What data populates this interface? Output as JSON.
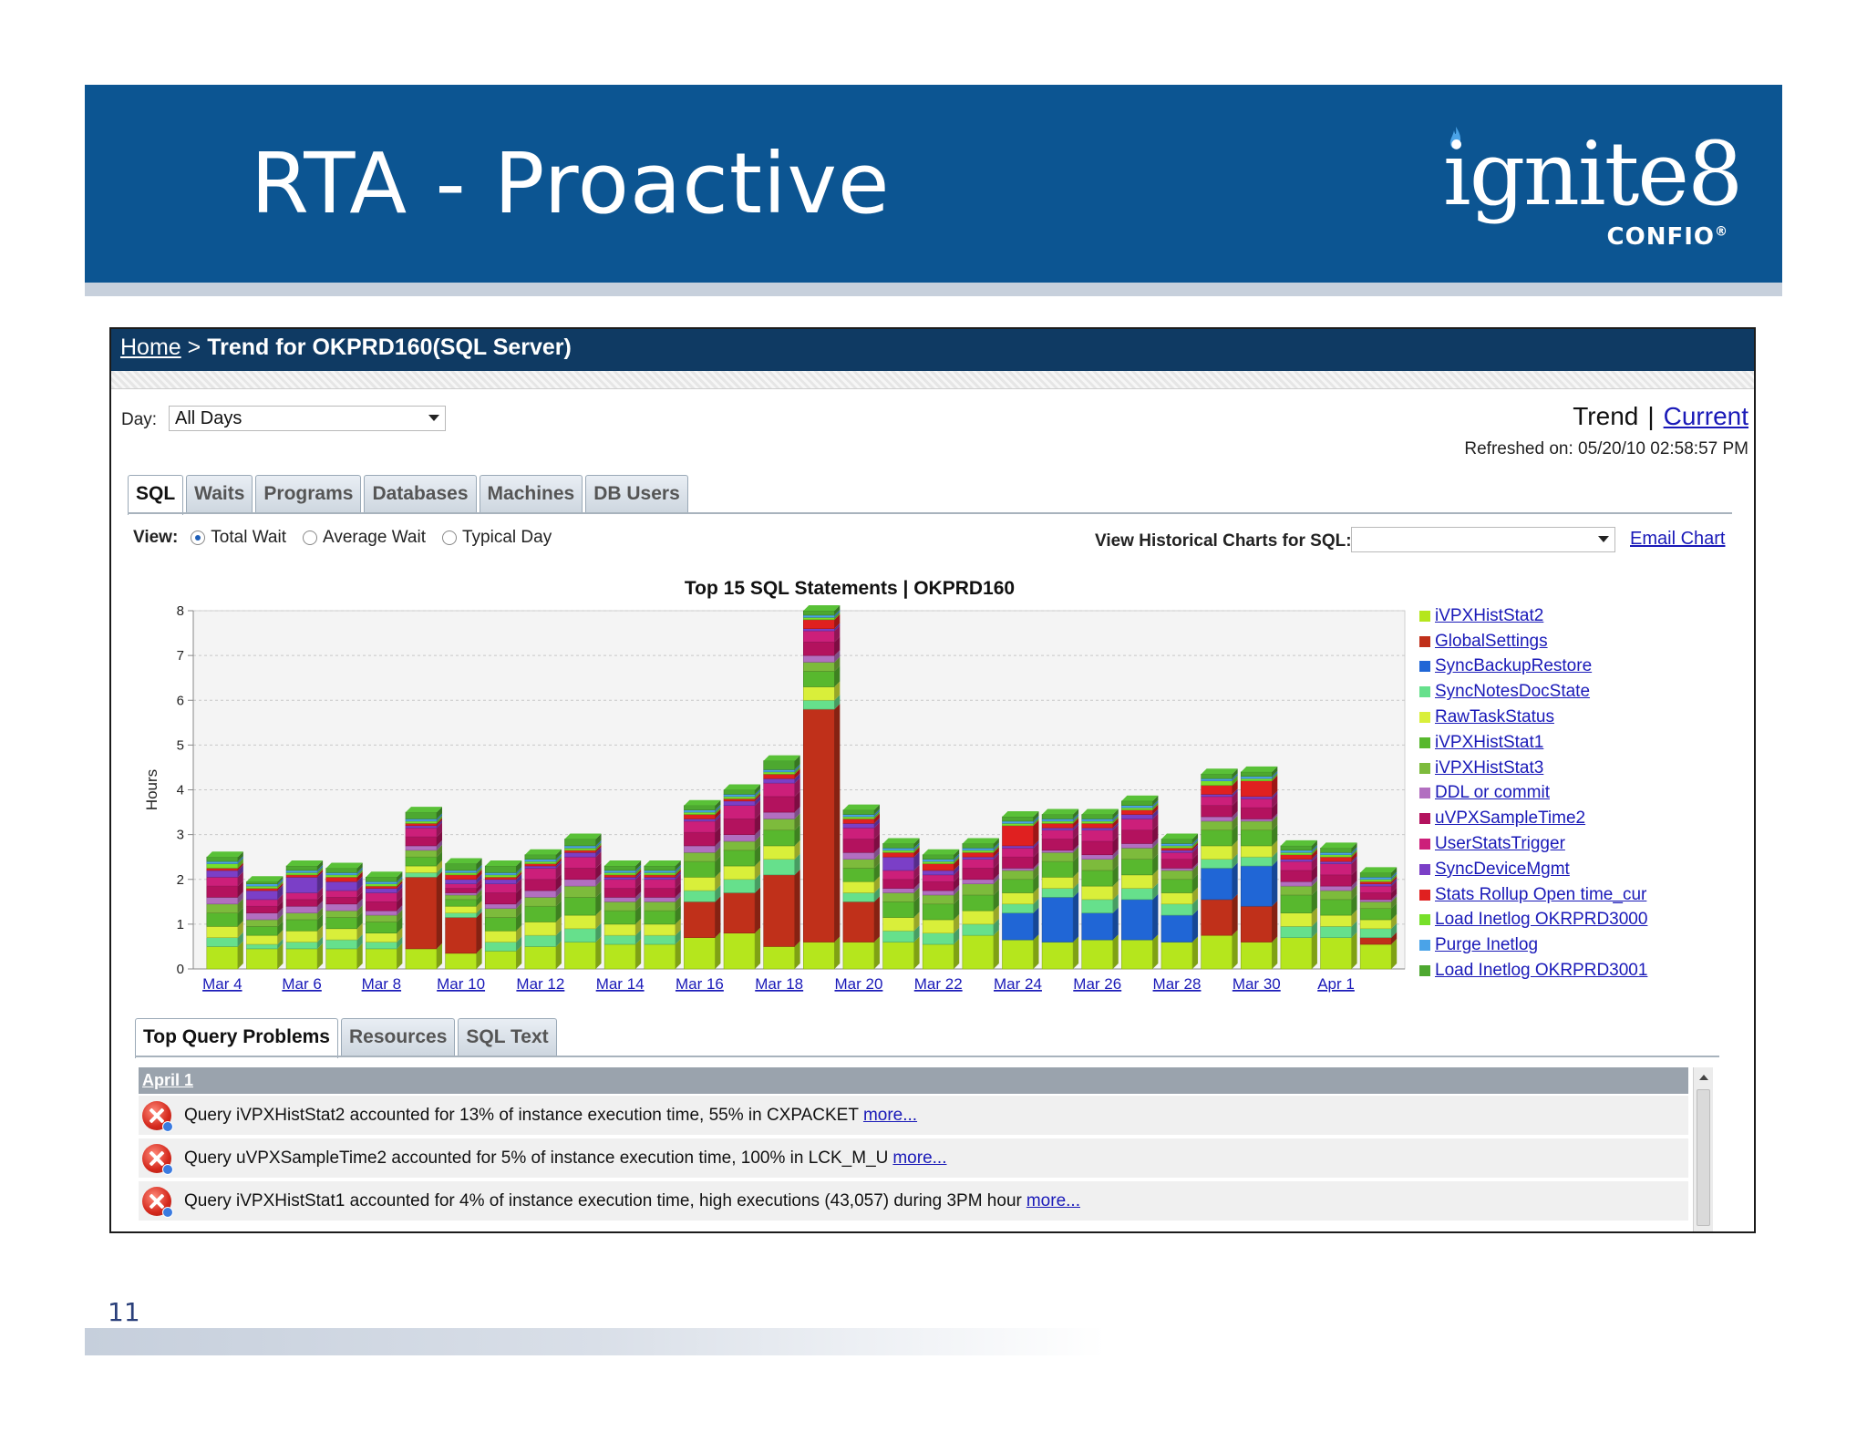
{
  "slide": {
    "title": "RTA - Proactive",
    "page_number": "11",
    "logo": {
      "word": "ignite8",
      "sub": "CONFIO",
      "trademark": "®"
    }
  },
  "app": {
    "breadcrumb_home": "Home",
    "breadcrumb_sep": ">",
    "page_title": "Trend for OKPRD160(SQL Server)",
    "day_label": "Day:",
    "day_value": "All Days",
    "trend_label": "Trend",
    "trend_sep": "|",
    "current_link": "Current",
    "refreshed": "Refreshed on: 05/20/10 02:58:57 PM",
    "tabs": [
      "SQL",
      "Waits",
      "Programs",
      "Databases",
      "Machines",
      "DB Users"
    ],
    "view_label": "View:",
    "view_options": [
      "Total Wait",
      "Average Wait",
      "Typical Day"
    ],
    "view_selected": "Total Wait",
    "historical_label": "View Historical Charts for SQL:",
    "historical_value": "",
    "email_chart": "Email Chart",
    "bottom_tabs": [
      "Top Query Problems",
      "Resources",
      "SQL Text"
    ],
    "problems_date": "April 1",
    "problems": [
      {
        "text": "Query iVPXHistStat2 accounted for 13% of instance execution time, 55% in CXPACKET",
        "more": "more..."
      },
      {
        "text": "Query uVPXSampleTime2 accounted for 5% of instance execution time, 100% in LCK_M_U",
        "more": "more..."
      },
      {
        "text": "Query iVPXHistStat1 accounted for 4% of instance execution time, high executions (43,057) during 3PM hour",
        "more": "more..."
      }
    ]
  },
  "colors": {
    "banner": "#0c5592",
    "titlebar": "#0f3a63",
    "link": "#1a1ab8"
  },
  "chart_data": {
    "type": "bar",
    "stacked": true,
    "title": "Top 15 SQL Statements | OKPRD160",
    "ylabel": "Hours",
    "xlabel": "",
    "ylim": [
      0,
      8
    ],
    "yticks": [
      0,
      1,
      2,
      3,
      4,
      5,
      6,
      7,
      8
    ],
    "grid": true,
    "legend_position": "right",
    "categories": [
      "Mar 4",
      "Mar 5",
      "Mar 6",
      "Mar 7",
      "Mar 8",
      "Mar 9",
      "Mar 10",
      "Mar 11",
      "Mar 12",
      "Mar 13",
      "Mar 14",
      "Mar 15",
      "Mar 16",
      "Mar 17",
      "Mar 18",
      "Mar 19",
      "Mar 20",
      "Mar 21",
      "Mar 22",
      "Mar 23",
      "Mar 24",
      "Mar 25",
      "Mar 26",
      "Mar 27",
      "Mar 28",
      "Mar 29",
      "Mar 30",
      "Mar 31",
      "Apr 1",
      "Apr 2"
    ],
    "x_tick_labels": [
      "Mar 4",
      "Mar 6",
      "Mar 8",
      "Mar 10",
      "Mar 12",
      "Mar 14",
      "Mar 16",
      "Mar 18",
      "Mar 20",
      "Mar 22",
      "Mar 24",
      "Mar 26",
      "Mar 28",
      "Mar 30",
      "Apr 1"
    ],
    "series": [
      {
        "name": "iVPXHistStat2",
        "color": "#b5e61d",
        "values": [
          0.5,
          0.45,
          0.45,
          0.45,
          0.45,
          0.45,
          0.35,
          0.4,
          0.5,
          0.6,
          0.55,
          0.55,
          0.7,
          0.8,
          0.5,
          0.6,
          0.6,
          0.6,
          0.55,
          0.75,
          0.65,
          0.6,
          0.65,
          0.65,
          0.6,
          0.75,
          0.6,
          0.7,
          0.7,
          0.55
        ]
      },
      {
        "name": "GlobalSettings",
        "color": "#c0301a",
        "values": [
          0,
          0,
          0,
          0,
          0,
          1.6,
          0.8,
          0,
          0,
          0,
          0,
          0,
          0.8,
          0.9,
          1.6,
          5.2,
          0.9,
          0,
          0,
          0,
          0,
          0,
          0,
          0,
          0,
          0.8,
          0.8,
          0,
          0,
          0.15
        ]
      },
      {
        "name": "SyncBackupRestore",
        "color": "#2066d6",
        "values": [
          0,
          0,
          0,
          0,
          0,
          0,
          0,
          0,
          0,
          0,
          0,
          0,
          0,
          0,
          0,
          0,
          0,
          0,
          0,
          0,
          0.6,
          1.0,
          0.6,
          0.9,
          0.6,
          0.7,
          0.9,
          0,
          0,
          0
        ]
      },
      {
        "name": "SyncNotesDocState",
        "color": "#66e08c",
        "values": [
          0.2,
          0.1,
          0.15,
          0.2,
          0.15,
          0.1,
          0.1,
          0.2,
          0.25,
          0.3,
          0.2,
          0.2,
          0.25,
          0.3,
          0.35,
          0.2,
          0.2,
          0.25,
          0.25,
          0.25,
          0.2,
          0.2,
          0.3,
          0.25,
          0.25,
          0.2,
          0.2,
          0.25,
          0.25,
          0.2
        ]
      },
      {
        "name": "RawTaskStatus",
        "color": "#d9ef3a",
        "values": [
          0.25,
          0.2,
          0.25,
          0.25,
          0.2,
          0.15,
          0.15,
          0.25,
          0.3,
          0.3,
          0.25,
          0.25,
          0.3,
          0.3,
          0.3,
          0.3,
          0.25,
          0.3,
          0.3,
          0.3,
          0.25,
          0.25,
          0.3,
          0.3,
          0.25,
          0.3,
          0.25,
          0.3,
          0.25,
          0.2
        ]
      },
      {
        "name": "iVPXHistStat1",
        "color": "#58b82e",
        "values": [
          0.3,
          0.2,
          0.25,
          0.25,
          0.25,
          0.2,
          0.15,
          0.3,
          0.35,
          0.4,
          0.3,
          0.3,
          0.35,
          0.35,
          0.35,
          0.35,
          0.3,
          0.35,
          0.35,
          0.35,
          0.3,
          0.35,
          0.35,
          0.35,
          0.3,
          0.35,
          0.35,
          0.4,
          0.35,
          0.25
        ]
      },
      {
        "name": "iVPXHistStat3",
        "color": "#7dbb3c",
        "values": [
          0.2,
          0.15,
          0.15,
          0.15,
          0.15,
          0.15,
          0.1,
          0.2,
          0.2,
          0.25,
          0.2,
          0.2,
          0.2,
          0.2,
          0.25,
          0.2,
          0.2,
          0.2,
          0.2,
          0.25,
          0.2,
          0.2,
          0.25,
          0.25,
          0.2,
          0.2,
          0.2,
          0.2,
          0.2,
          0.15
        ]
      },
      {
        "name": "DDL or commit",
        "color": "#b26fc0",
        "values": [
          0.15,
          0.15,
          0.15,
          0.15,
          0.1,
          0.1,
          0.05,
          0.1,
          0.15,
          0.15,
          0.1,
          0.1,
          0.15,
          0.15,
          0.15,
          0.15,
          0.15,
          0.1,
          0.1,
          0.1,
          0.05,
          0.05,
          0.1,
          0.1,
          0.05,
          0.1,
          0.05,
          0.1,
          0.1,
          0.05
        ]
      },
      {
        "name": "uVPXSampleTime2",
        "color": "#b3125e",
        "values": [
          0.25,
          0.15,
          0.15,
          0.15,
          0.2,
          0.2,
          0.1,
          0.25,
          0.25,
          0.25,
          0.2,
          0.2,
          0.3,
          0.35,
          0.35,
          0.3,
          0.3,
          0.2,
          0.2,
          0.25,
          0.25,
          0.25,
          0.3,
          0.3,
          0.2,
          0.25,
          0.25,
          0.25,
          0.25,
          0.15
        ]
      },
      {
        "name": "UserStatsTrigger",
        "color": "#cc1f7a",
        "values": [
          0.2,
          0.15,
          0.15,
          0.15,
          0.2,
          0.2,
          0.1,
          0.2,
          0.25,
          0.25,
          0.2,
          0.2,
          0.25,
          0.3,
          0.3,
          0.25,
          0.25,
          0.2,
          0.15,
          0.2,
          0.2,
          0.2,
          0.25,
          0.25,
          0.15,
          0.2,
          0.2,
          0.2,
          0.25,
          0.15
        ]
      },
      {
        "name": "SyncDeviceMgmt",
        "color": "#7b3fc7",
        "values": [
          0.15,
          0.2,
          0.35,
          0.2,
          0.1,
          0.05,
          0.1,
          0.1,
          0.05,
          0.1,
          0.05,
          0.05,
          0.05,
          0.1,
          0.1,
          0.05,
          0.1,
          0.3,
          0.1,
          0.05,
          0.05,
          0.05,
          0.05,
          0.1,
          0.05,
          0.05,
          0.05,
          0.05,
          0.05,
          0.05
        ]
      },
      {
        "name": "Stats Rollup Open time_cur",
        "color": "#e02020",
        "values": [
          0.05,
          0.05,
          0.05,
          0.1,
          0.05,
          0.05,
          0.1,
          0.05,
          0.05,
          0.05,
          0.05,
          0.05,
          0.1,
          0.05,
          0.1,
          0.2,
          0.1,
          0.1,
          0.15,
          0.1,
          0.45,
          0.1,
          0.1,
          0.1,
          0.05,
          0.2,
          0.35,
          0.1,
          0.1,
          0.05
        ]
      },
      {
        "name": "Load Inetlog OKRPRD3000",
        "color": "#77e02a",
        "values": [
          0.1,
          0.05,
          0.05,
          0.05,
          0.05,
          0.05,
          0.05,
          0.05,
          0.05,
          0.05,
          0.05,
          0.05,
          0.05,
          0.05,
          0.05,
          0.05,
          0.05,
          0.05,
          0.05,
          0.05,
          0.05,
          0.05,
          0.05,
          0.05,
          0.05,
          0.1,
          0.05,
          0.05,
          0.05,
          0.05
        ]
      },
      {
        "name": "Purge Inetlog",
        "color": "#4aa3e8",
        "values": [
          0.05,
          0.05,
          0.05,
          0.05,
          0.05,
          0.05,
          0.05,
          0.05,
          0.05,
          0.05,
          0.05,
          0.05,
          0.05,
          0.05,
          0.05,
          0.05,
          0.05,
          0.05,
          0.05,
          0.05,
          0.05,
          0.05,
          0.05,
          0.05,
          0.05,
          0.05,
          0.05,
          0.05,
          0.05,
          0.05
        ]
      },
      {
        "name": "Load Inetlog OKRPRD3001",
        "color": "#4da830",
        "values": [
          0.1,
          0.05,
          0.1,
          0.1,
          0.1,
          0.15,
          0.15,
          0.15,
          0.1,
          0.15,
          0.1,
          0.1,
          0.1,
          0.1,
          0.2,
          0.1,
          0.1,
          0.1,
          0.1,
          0.1,
          0.1,
          0.1,
          0.1,
          0.1,
          0.1,
          0.1,
          0.1,
          0.1,
          0.1,
          0.1
        ]
      }
    ]
  }
}
